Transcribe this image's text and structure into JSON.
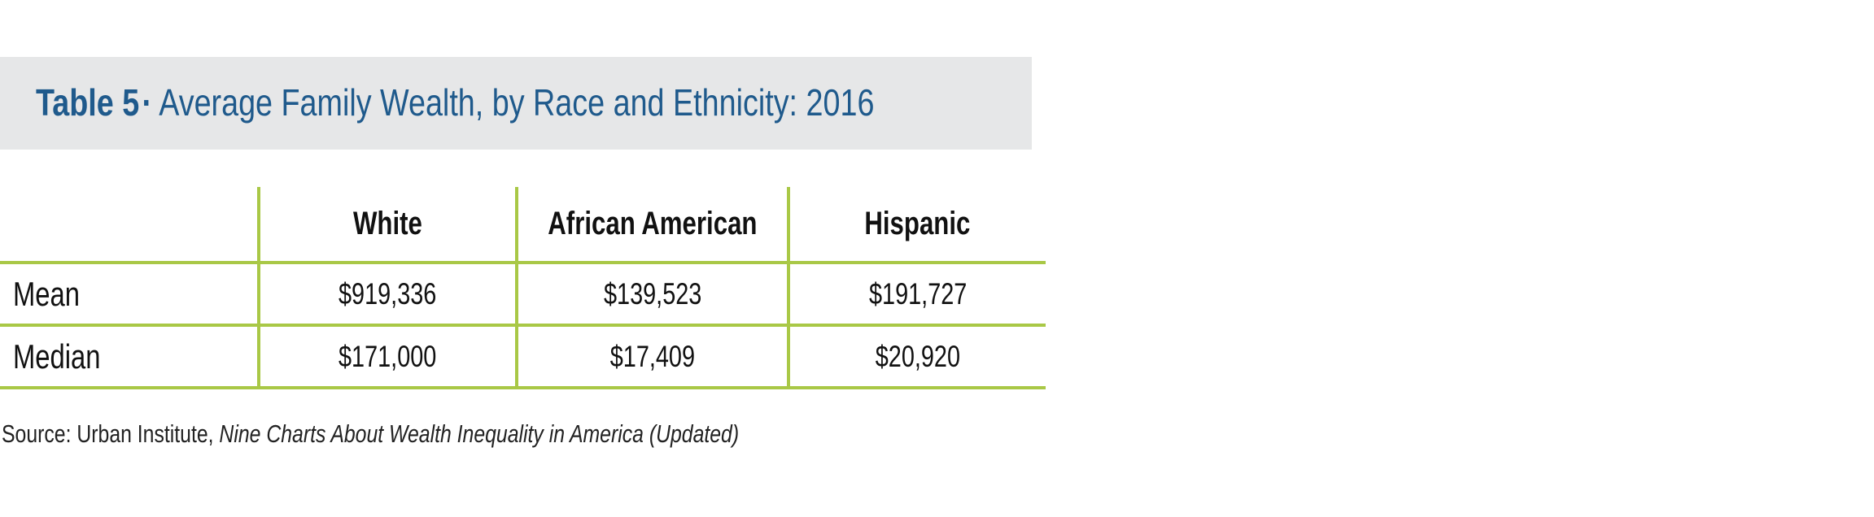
{
  "title": {
    "label": "Table 5",
    "separator": "·",
    "text": "Average Family Wealth, by Race and Ethnicity: 2016"
  },
  "table": {
    "columns": [
      "",
      "White",
      "African American",
      "Hispanic"
    ],
    "rows": [
      {
        "label": "Mean",
        "values": [
          "$919,336",
          "$139,523",
          "$191,727"
        ]
      },
      {
        "label": "Median",
        "values": [
          "$171,000",
          "$17,409",
          "$20,920"
        ]
      }
    ]
  },
  "source": {
    "prefix": "Source: Urban Institute, ",
    "title": "Nine Charts About Wealth Inequality in America (Updated)"
  },
  "colors": {
    "title_blue": "#1f5a8c",
    "title_bar_bg": "#e6e7e8",
    "rule_green": "#a9c846"
  }
}
